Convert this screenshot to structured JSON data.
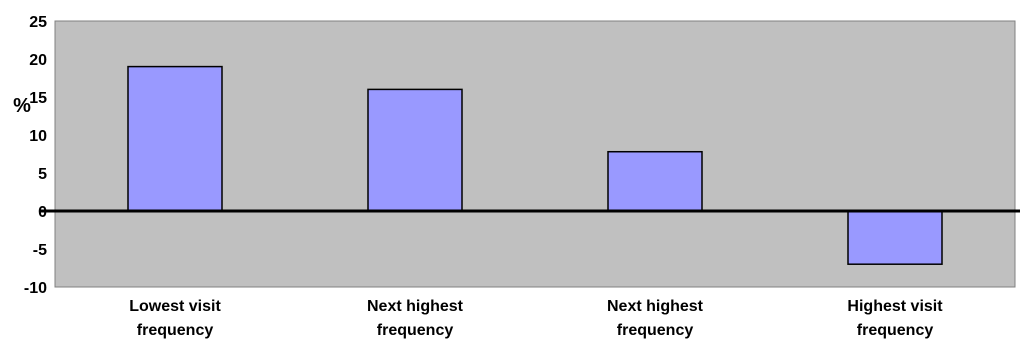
{
  "chart_data": {
    "type": "bar",
    "title": "",
    "xlabel": "",
    "ylabel": "%",
    "ylim": [
      -10,
      25
    ],
    "yticks": [
      25,
      20,
      15,
      10,
      5,
      0,
      -5,
      -10
    ],
    "grid": false,
    "legend": "none",
    "categories": [
      [
        "Lowest visit",
        "frequency"
      ],
      [
        "Next highest",
        "frequency"
      ],
      [
        "Next highest",
        "frequency"
      ],
      [
        "Highest visit",
        "frequency"
      ]
    ],
    "values": [
      19,
      16,
      7.8,
      -7
    ],
    "colors": {
      "plot_background": "#c0c0c0",
      "bar_fill": "#9999ff",
      "bar_stroke": "#000000",
      "axis": "#000000"
    }
  }
}
